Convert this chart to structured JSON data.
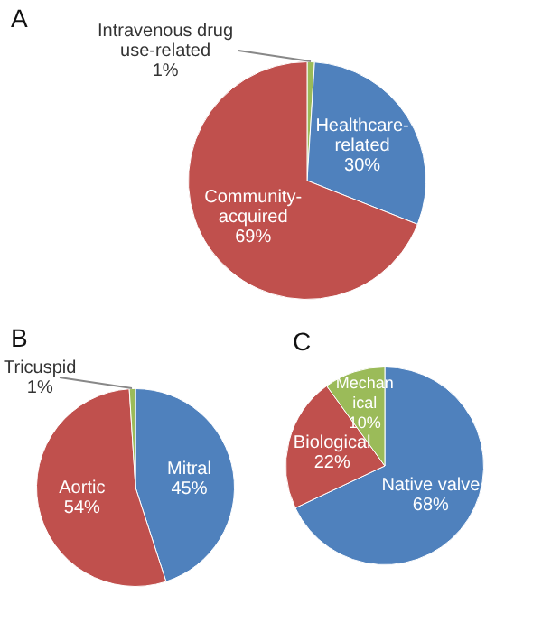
{
  "chart_data": [
    {
      "type": "pie",
      "title": "A",
      "categories": [
        "Intravenous drug use-related",
        "Healthcare-related",
        "Community-acquired"
      ],
      "values": [
        1,
        30,
        69
      ],
      "colors": [
        "#9bbb59",
        "#4f81bd",
        "#c0504d"
      ],
      "value_labels": [
        "1%",
        "30%",
        "69%"
      ]
    },
    {
      "type": "pie",
      "title": "B",
      "categories": [
        "Mitral",
        "Aortic",
        "Tricuspid"
      ],
      "values": [
        45,
        54,
        1
      ],
      "colors": [
        "#4f81bd",
        "#c0504d",
        "#9bbb59"
      ],
      "value_labels": [
        "45%",
        "54%",
        "1%"
      ]
    },
    {
      "type": "pie",
      "title": "C",
      "categories": [
        "Native valve",
        "Biological",
        "Mechanical"
      ],
      "values": [
        68,
        22,
        10
      ],
      "colors": [
        "#4f81bd",
        "#c0504d",
        "#9bbb59"
      ],
      "value_labels": [
        "68%",
        "22%",
        "10%"
      ]
    }
  ]
}
